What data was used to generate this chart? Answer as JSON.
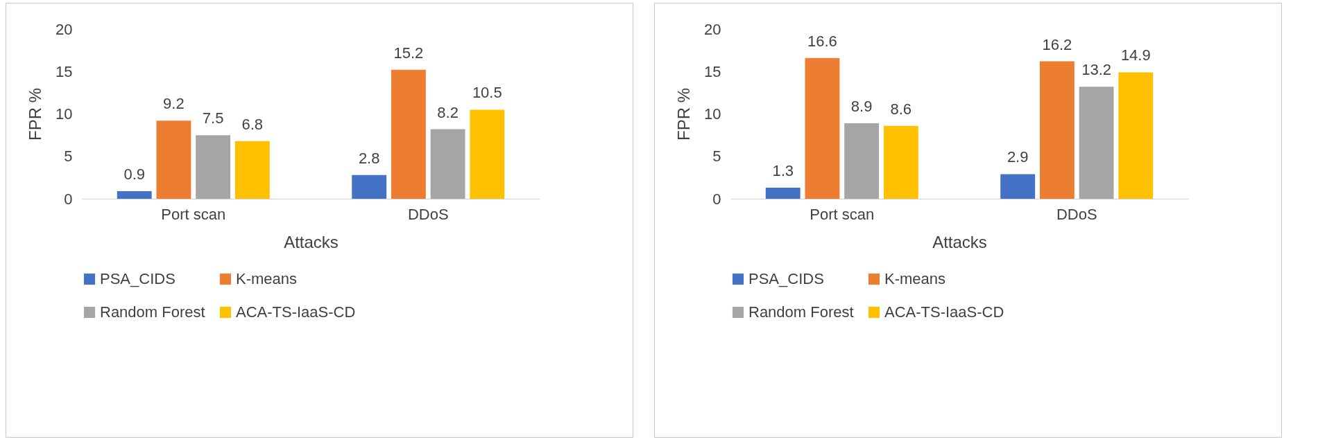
{
  "chart_data": [
    {
      "type": "bar",
      "xlabel": "Attacks",
      "ylabel": "FPR %",
      "categories": [
        "Port scan",
        "DDoS"
      ],
      "series": [
        {
          "name": "PSA_CIDS",
          "color": "#4472c4",
          "values": [
            0.9,
            2.8
          ]
        },
        {
          "name": "K-means",
          "color": "#ed7d31",
          "values": [
            9.2,
            15.2
          ]
        },
        {
          "name": "Random Forest",
          "color": "#a5a5a5",
          "values": [
            7.5,
            8.2
          ]
        },
        {
          "name": "ACA-TS-IaaS-CD",
          "color": "#ffc000",
          "values": [
            6.8,
            10.5
          ]
        }
      ],
      "ylim": [
        0,
        20
      ],
      "yticks": [
        0,
        5,
        10,
        15,
        20
      ],
      "grid": false,
      "legend": "bottom",
      "data_labels": true
    },
    {
      "type": "bar",
      "xlabel": "Attacks",
      "ylabel": "FPR %",
      "categories": [
        "Port scan",
        "DDoS"
      ],
      "series": [
        {
          "name": "PSA_CIDS",
          "color": "#4472c4",
          "values": [
            1.3,
            2.9
          ]
        },
        {
          "name": "K-means",
          "color": "#ed7d31",
          "values": [
            16.6,
            16.2
          ]
        },
        {
          "name": "Random Forest",
          "color": "#a5a5a5",
          "values": [
            8.9,
            13.2
          ]
        },
        {
          "name": "ACA-TS-IaaS-CD",
          "color": "#ffc000",
          "values": [
            8.6,
            14.9
          ]
        }
      ],
      "ylim": [
        0,
        20
      ],
      "yticks": [
        0,
        5,
        10,
        15,
        20
      ],
      "grid": false,
      "legend": "bottom",
      "data_labels": true
    }
  ]
}
